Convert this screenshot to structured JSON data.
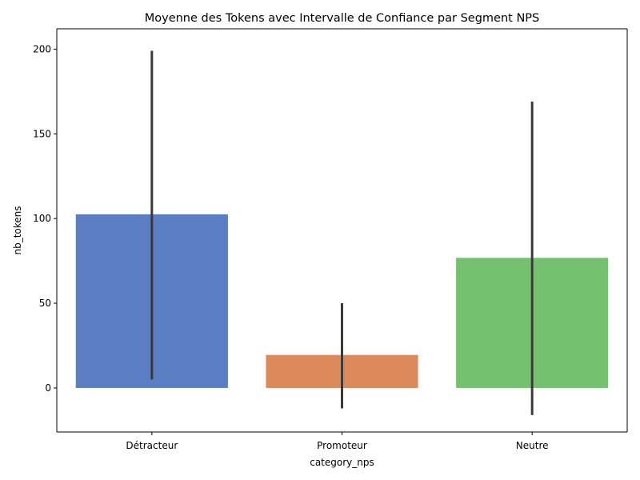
{
  "chart_data": {
    "type": "bar",
    "title": "Moyenne des Tokens avec Intervalle de Confiance par Segment NPS",
    "xlabel": "category_nps",
    "ylabel": "nb_tokens",
    "categories": [
      "Détracteur",
      "Promoteur",
      "Neutre"
    ],
    "values": [
      102.5,
      19.5,
      76.8
    ],
    "ci_low": [
      5,
      -12,
      -16
    ],
    "ci_high": [
      199,
      50,
      169
    ],
    "colors": [
      "#5a7dc4",
      "#dc8a5c",
      "#74c16f"
    ],
    "error_bar_color": "#3a3a3a",
    "ylim": [
      -26,
      212
    ],
    "yticks": [
      0,
      50,
      100,
      150,
      200
    ],
    "grid": false,
    "legend": "none"
  }
}
